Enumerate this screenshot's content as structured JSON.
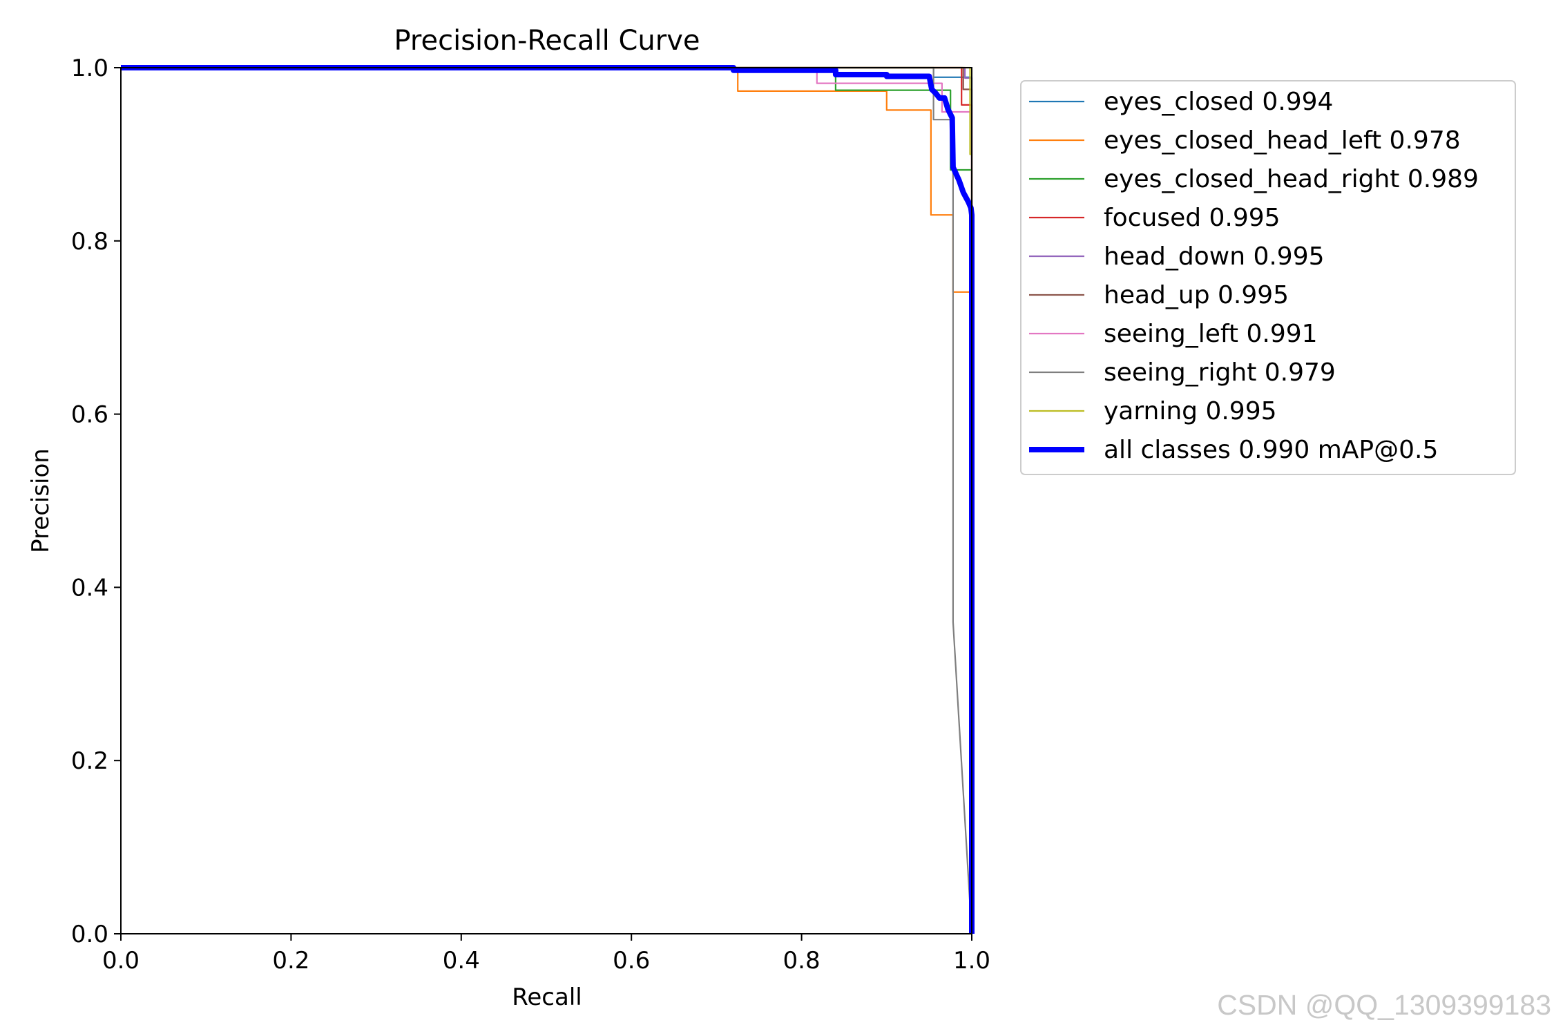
{
  "chart_data": {
    "type": "line",
    "title": "Precision-Recall Curve",
    "xlabel": "Recall",
    "ylabel": "Precision",
    "xlim": [
      0,
      1
    ],
    "ylim": [
      0,
      1
    ],
    "x_ticks": [
      "0.0",
      "0.2",
      "0.4",
      "0.6",
      "0.8",
      "1.0"
    ],
    "y_ticks": [
      "0.0",
      "0.2",
      "0.4",
      "0.6",
      "0.8",
      "1.0"
    ],
    "legend_position": "outside-right-top",
    "series": [
      {
        "name": "eyes_closed 0.994",
        "color": "#1f77b4",
        "width": "thin",
        "points": [
          [
            0,
            1
          ],
          [
            0.955,
            1
          ],
          [
            0.955,
            0.989
          ],
          [
            1,
            0.989
          ],
          [
            1,
            0
          ]
        ]
      },
      {
        "name": "eyes_closed_head_left 0.978",
        "color": "#ff7f0e",
        "width": "thin",
        "points": [
          [
            0,
            1
          ],
          [
            0.725,
            1
          ],
          [
            0.725,
            0.973
          ],
          [
            0.9,
            0.973
          ],
          [
            0.9,
            0.951
          ],
          [
            0.952,
            0.951
          ],
          [
            0.952,
            0.83
          ],
          [
            0.978,
            0.83
          ],
          [
            0.978,
            0.741
          ],
          [
            1,
            0.741
          ],
          [
            1,
            0
          ]
        ]
      },
      {
        "name": "eyes_closed_head_right 0.989",
        "color": "#2ca02c",
        "width": "thin",
        "points": [
          [
            0,
            1
          ],
          [
            0.84,
            1
          ],
          [
            0.84,
            0.974
          ],
          [
            0.975,
            0.974
          ],
          [
            0.975,
            0.882
          ],
          [
            1,
            0.882
          ],
          [
            1,
            0
          ]
        ]
      },
      {
        "name": "focused 0.995",
        "color": "#d62728",
        "width": "thin",
        "points": [
          [
            0,
            1
          ],
          [
            0.988,
            1
          ],
          [
            0.988,
            0.957
          ],
          [
            1,
            0.957
          ],
          [
            1,
            0
          ]
        ]
      },
      {
        "name": "head_down 0.995",
        "color": "#9467bd",
        "width": "thin",
        "points": [
          [
            0,
            1
          ],
          [
            0.992,
            1
          ],
          [
            0.992,
            0.988
          ],
          [
            1,
            0.988
          ],
          [
            1,
            0
          ]
        ]
      },
      {
        "name": "head_up 0.995",
        "color": "#8c564b",
        "width": "thin",
        "points": [
          [
            0,
            1
          ],
          [
            0.99,
            1
          ],
          [
            0.99,
            0.975
          ],
          [
            1,
            0.975
          ],
          [
            1,
            0
          ]
        ]
      },
      {
        "name": "seeing_left 0.991",
        "color": "#e377c2",
        "width": "thin",
        "points": [
          [
            0,
            1
          ],
          [
            0.818,
            1
          ],
          [
            0.818,
            0.982
          ],
          [
            0.965,
            0.982
          ],
          [
            0.965,
            0.949
          ],
          [
            1,
            0.949
          ],
          [
            1,
            0
          ]
        ]
      },
      {
        "name": "seeing_right 0.979",
        "color": "#7f7f7f",
        "width": "thin",
        "points": [
          [
            0,
            1
          ],
          [
            0.955,
            1
          ],
          [
            0.955,
            0.94
          ],
          [
            0.978,
            0.94
          ],
          [
            0.978,
            0.36
          ],
          [
            1,
            0.0
          ]
        ]
      },
      {
        "name": "yarning 0.995",
        "color": "#bcbd22",
        "width": "thin",
        "points": [
          [
            0,
            1
          ],
          [
            0.998,
            1
          ],
          [
            0.998,
            0.9
          ],
          [
            1,
            0.9
          ],
          [
            1,
            0
          ]
        ]
      },
      {
        "name": "all classes 0.990 mAP@0.5",
        "color": "#0000ff",
        "width": "thick",
        "points": [
          [
            0,
            1
          ],
          [
            0.72,
            1
          ],
          [
            0.72,
            0.997
          ],
          [
            0.84,
            0.997
          ],
          [
            0.84,
            0.992
          ],
          [
            0.9,
            0.992
          ],
          [
            0.9,
            0.99
          ],
          [
            0.95,
            0.99
          ],
          [
            0.953,
            0.975
          ],
          [
            0.958,
            0.97
          ],
          [
            0.962,
            0.965
          ],
          [
            0.968,
            0.965
          ],
          [
            0.972,
            0.952
          ],
          [
            0.977,
            0.942
          ],
          [
            0.978,
            0.885
          ],
          [
            0.985,
            0.87
          ],
          [
            0.99,
            0.856
          ],
          [
            0.996,
            0.845
          ],
          [
            0.999,
            0.838
          ],
          [
            1,
            0.83
          ],
          [
            1,
            0
          ]
        ]
      }
    ]
  },
  "watermark": "CSDN @QQ_1309399183"
}
